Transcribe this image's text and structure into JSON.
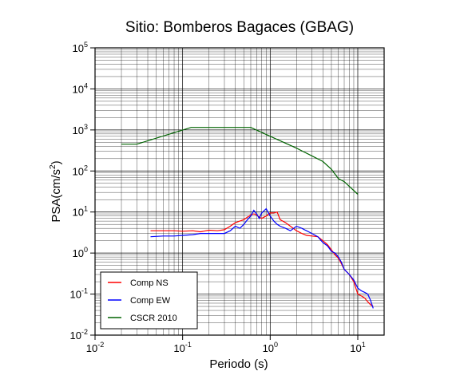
{
  "chart_data": {
    "type": "line",
    "title": "Sitio: Bomberos Bagaces (GBAG)",
    "xlabel": "Periodo (s)",
    "ylabel_main": "PSA(cm/s",
    "ylabel_sup": "2",
    "ylabel_tail": ")",
    "xscale": "log",
    "yscale": "log",
    "xlim": [
      0.01,
      20
    ],
    "ylim": [
      0.01,
      100000
    ],
    "grid": true,
    "legend_position": "bottom-left",
    "x_ticks": [
      {
        "value": 0.01,
        "base": "10",
        "exp": "-2"
      },
      {
        "value": 0.1,
        "base": "10",
        "exp": "-1"
      },
      {
        "value": 1,
        "base": "10",
        "exp": "0"
      },
      {
        "value": 10,
        "base": "10",
        "exp": "1"
      }
    ],
    "y_ticks": [
      {
        "value": 0.01,
        "base": "10",
        "exp": "-2"
      },
      {
        "value": 0.1,
        "base": "10",
        "exp": "-1"
      },
      {
        "value": 1,
        "base": "10",
        "exp": "0"
      },
      {
        "value": 10,
        "base": "10",
        "exp": "1"
      },
      {
        "value": 100,
        "base": "10",
        "exp": "2"
      },
      {
        "value": 1000,
        "base": "10",
        "exp": "3"
      },
      {
        "value": 10000,
        "base": "10",
        "exp": "4"
      },
      {
        "value": 100000,
        "base": "10",
        "exp": "5"
      }
    ],
    "series": [
      {
        "name": "Comp NS",
        "color": "#ff0000",
        "x": [
          0.043,
          0.06,
          0.08,
          0.1,
          0.13,
          0.16,
          0.2,
          0.25,
          0.3,
          0.35,
          0.4,
          0.45,
          0.5,
          0.55,
          0.6,
          0.65,
          0.7,
          0.75,
          0.8,
          0.9,
          1.0,
          1.1,
          1.2,
          1.3,
          1.5,
          1.7,
          2.0,
          2.3,
          2.6,
          3.0,
          3.5,
          4.0,
          4.5,
          5.0,
          5.5,
          6.0,
          6.5,
          7.0,
          8.0,
          9.0,
          10.0,
          11.0,
          12.0,
          13.0,
          14.0,
          15.0
        ],
        "y": [
          3.5,
          3.5,
          3.5,
          3.4,
          3.5,
          3.3,
          3.6,
          3.5,
          3.7,
          4.5,
          5.5,
          6.0,
          6.5,
          7.5,
          8.5,
          9.0,
          8.5,
          7.5,
          7.0,
          8.0,
          9.5,
          9.5,
          10.0,
          6.5,
          5.5,
          4.5,
          3.5,
          3.0,
          2.7,
          2.6,
          2.5,
          2.0,
          1.6,
          1.2,
          0.9,
          0.75,
          0.55,
          0.4,
          0.3,
          0.2,
          0.1,
          0.09,
          0.08,
          0.065,
          0.055,
          0.05
        ]
      },
      {
        "name": "Comp EW",
        "color": "#0000ff",
        "x": [
          0.043,
          0.06,
          0.08,
          0.1,
          0.13,
          0.16,
          0.2,
          0.25,
          0.3,
          0.35,
          0.4,
          0.45,
          0.5,
          0.55,
          0.6,
          0.65,
          0.7,
          0.75,
          0.8,
          0.9,
          1.0,
          1.1,
          1.2,
          1.3,
          1.5,
          1.7,
          2.0,
          2.3,
          2.6,
          3.0,
          3.5,
          4.0,
          4.5,
          5.0,
          5.5,
          6.0,
          6.5,
          7.0,
          8.0,
          9.0,
          10.0,
          11.0,
          12.0,
          13.0,
          14.0,
          15.0
        ],
        "y": [
          2.5,
          2.6,
          2.6,
          2.7,
          2.8,
          3.0,
          3.0,
          3.0,
          3.0,
          3.5,
          4.5,
          4.0,
          5.0,
          6.5,
          8.0,
          11.0,
          9.0,
          7.0,
          9.5,
          12.0,
          8.0,
          6.0,
          5.0,
          4.5,
          4.0,
          3.5,
          4.5,
          4.0,
          3.5,
          3.0,
          2.5,
          1.8,
          1.5,
          1.1,
          1.0,
          0.8,
          0.6,
          0.4,
          0.3,
          0.22,
          0.14,
          0.12,
          0.11,
          0.1,
          0.07,
          0.045
        ]
      },
      {
        "name": "CSCR 2010",
        "color": "#006400",
        "x": [
          0.02,
          0.03,
          0.125,
          0.6,
          1.0,
          2.0,
          4.0,
          5.0,
          6.0,
          7.0,
          10.0
        ],
        "y": [
          450,
          450,
          1150,
          1150,
          700,
          360,
          170,
          110,
          65,
          55,
          27
        ]
      }
    ]
  }
}
